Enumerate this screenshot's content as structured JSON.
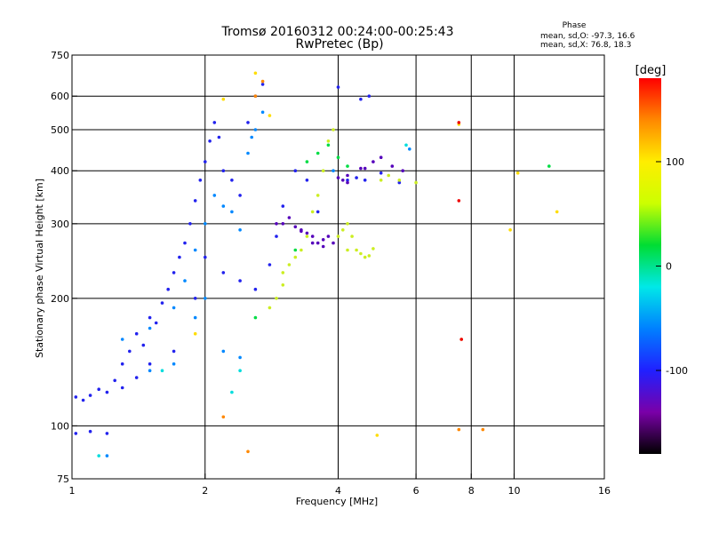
{
  "chart_data": {
    "type": "scatter",
    "title": "Tromsø 20160312 00:24:00-00:25:43",
    "subtitle": "RwPretec (Bp)",
    "xlabel": "Frequency [MHz]",
    "ylabel": "Stationary phase Virtual Height [km]",
    "xscale": "log2",
    "yscale": "log",
    "xlim": [
      1,
      16
    ],
    "ylim": [
      75,
      750
    ],
    "xticks": [
      1,
      2,
      4,
      6,
      8,
      10,
      16
    ],
    "yticks": [
      75,
      100,
      200,
      300,
      400,
      500,
      600,
      750
    ],
    "xgrid": [
      2,
      4,
      6,
      8,
      10
    ],
    "ygrid": [
      100,
      200,
      300,
      400,
      500,
      600
    ],
    "grid": true,
    "stats": {
      "title": "Phase",
      "line_o": "mean, sd,O: -97.3, 16.6",
      "line_x": "mean, sd,X:  76.8, 18.3"
    },
    "colorbar": {
      "label": "[deg]",
      "range": [
        -180,
        180
      ],
      "ticks": [
        100,
        0,
        -100
      ],
      "colormap": [
        "#000000",
        "#7a00a8",
        "#2020ff",
        "#0080ff",
        "#00e8e8",
        "#00dd33",
        "#ccff00",
        "#ffee00",
        "#ff8800",
        "#ff0000"
      ]
    },
    "series": [
      {
        "color": "#2222ee",
        "points": [
          [
            1.02,
            117
          ],
          [
            1.06,
            115
          ],
          [
            1.1,
            118
          ],
          [
            1.15,
            122
          ],
          [
            1.2,
            120
          ],
          [
            1.25,
            128
          ],
          [
            1.3,
            140
          ],
          [
            1.35,
            150
          ],
          [
            1.4,
            165
          ],
          [
            1.45,
            155
          ],
          [
            1.5,
            180
          ],
          [
            1.55,
            175
          ],
          [
            1.6,
            195
          ],
          [
            1.65,
            210
          ],
          [
            1.7,
            230
          ],
          [
            1.75,
            250
          ],
          [
            1.8,
            270
          ],
          [
            1.85,
            300
          ],
          [
            1.9,
            340
          ],
          [
            1.95,
            380
          ],
          [
            2.0,
            420
          ],
          [
            2.05,
            470
          ],
          [
            2.1,
            520
          ],
          [
            2.15,
            480
          ],
          [
            2.2,
            400
          ],
          [
            2.3,
            380
          ],
          [
            2.4,
            350
          ],
          [
            2.5,
            520
          ],
          [
            2.6,
            600
          ],
          [
            2.7,
            640
          ],
          [
            1.02,
            96
          ],
          [
            1.1,
            97
          ],
          [
            1.2,
            96
          ],
          [
            1.3,
            123
          ],
          [
            1.4,
            130
          ],
          [
            1.5,
            140
          ],
          [
            1.7,
            150
          ],
          [
            1.9,
            200
          ],
          [
            2.0,
            250
          ],
          [
            2.2,
            230
          ],
          [
            2.4,
            220
          ],
          [
            2.6,
            210
          ],
          [
            2.8,
            240
          ],
          [
            2.9,
            280
          ],
          [
            3.0,
            330
          ],
          [
            3.2,
            400
          ],
          [
            3.4,
            380
          ],
          [
            3.6,
            320
          ],
          [
            4.2,
            380
          ],
          [
            4.4,
            385
          ],
          [
            4.6,
            380
          ],
          [
            5.0,
            395
          ],
          [
            5.5,
            375
          ],
          [
            4.5,
            590
          ],
          [
            4.7,
            600
          ],
          [
            4.0,
            630
          ]
        ]
      },
      {
        "color": "#0088ff",
        "points": [
          [
            1.3,
            160
          ],
          [
            1.5,
            170
          ],
          [
            1.7,
            190
          ],
          [
            1.8,
            220
          ],
          [
            1.9,
            260
          ],
          [
            2.0,
            300
          ],
          [
            2.1,
            350
          ],
          [
            2.2,
            330
          ],
          [
            2.3,
            320
          ],
          [
            2.4,
            290
          ],
          [
            2.5,
            440
          ],
          [
            2.55,
            480
          ],
          [
            2.6,
            500
          ],
          [
            2.7,
            550
          ],
          [
            2.0,
            200
          ],
          [
            1.9,
            180
          ],
          [
            1.7,
            140
          ],
          [
            1.5,
            135
          ],
          [
            2.2,
            150
          ],
          [
            2.4,
            145
          ],
          [
            1.2,
            85
          ],
          [
            3.9,
            400
          ],
          [
            5.8,
            450
          ]
        ]
      },
      {
        "color": "#5500bb",
        "points": [
          [
            3.0,
            300
          ],
          [
            3.1,
            310
          ],
          [
            3.2,
            295
          ],
          [
            3.3,
            290
          ],
          [
            3.4,
            285
          ],
          [
            3.5,
            280
          ],
          [
            3.6,
            270
          ],
          [
            3.7,
            275
          ],
          [
            3.8,
            280
          ],
          [
            3.9,
            270
          ],
          [
            4.0,
            385
          ],
          [
            4.1,
            380
          ],
          [
            4.2,
            375
          ],
          [
            4.5,
            405
          ],
          [
            4.8,
            420
          ],
          [
            5.0,
            430
          ],
          [
            5.3,
            410
          ],
          [
            5.6,
            400
          ],
          [
            4.2,
            390
          ],
          [
            3.5,
            270
          ],
          [
            3.3,
            288
          ],
          [
            3.7,
            265
          ],
          [
            2.9,
            300
          ],
          [
            4.6,
            405
          ]
        ]
      },
      {
        "color": "#ccee22",
        "points": [
          [
            3.0,
            230
          ],
          [
            3.1,
            240
          ],
          [
            3.2,
            250
          ],
          [
            3.3,
            260
          ],
          [
            3.4,
            280
          ],
          [
            3.5,
            320
          ],
          [
            3.6,
            350
          ],
          [
            3.7,
            400
          ],
          [
            3.8,
            470
          ],
          [
            3.9,
            500
          ],
          [
            4.0,
            280
          ],
          [
            4.1,
            290
          ],
          [
            4.2,
            300
          ],
          [
            4.3,
            280
          ],
          [
            4.4,
            260
          ],
          [
            4.5,
            255
          ],
          [
            4.6,
            250
          ],
          [
            4.7,
            252
          ],
          [
            4.8,
            262
          ],
          [
            5.0,
            380
          ],
          [
            5.2,
            390
          ],
          [
            5.5,
            380
          ],
          [
            6.0,
            375
          ],
          [
            4.2,
            260
          ],
          [
            2.9,
            200
          ],
          [
            2.8,
            190
          ],
          [
            3.0,
            215
          ]
        ]
      },
      {
        "color": "#00dd44",
        "points": [
          [
            3.4,
            420
          ],
          [
            3.6,
            440
          ],
          [
            3.8,
            460
          ],
          [
            4.0,
            430
          ],
          [
            4.2,
            410
          ],
          [
            12.0,
            410
          ],
          [
            2.6,
            180
          ],
          [
            3.2,
            260
          ]
        ]
      },
      {
        "color": "#ffdd00",
        "points": [
          [
            2.6,
            680
          ],
          [
            7.5,
            515
          ],
          [
            10.2,
            395
          ],
          [
            12.5,
            320
          ],
          [
            9.8,
            290
          ],
          [
            2.2,
            590
          ],
          [
            1.9,
            165
          ],
          [
            2.8,
            540
          ],
          [
            4.9,
            95
          ]
        ]
      },
      {
        "color": "#ff8800",
        "points": [
          [
            2.7,
            650
          ],
          [
            2.2,
            105
          ],
          [
            2.5,
            87
          ],
          [
            7.5,
            98
          ],
          [
            8.5,
            98
          ],
          [
            7.6,
            160
          ],
          [
            2.6,
            600
          ]
        ]
      },
      {
        "color": "#ee0000",
        "points": [
          [
            7.6,
            160
          ],
          [
            7.5,
            340
          ],
          [
            7.5,
            520
          ]
        ]
      },
      {
        "color": "#00dddd",
        "points": [
          [
            1.15,
            85
          ],
          [
            5.7,
            460
          ],
          [
            2.4,
            135
          ],
          [
            2.3,
            120
          ],
          [
            1.6,
            135
          ]
        ]
      }
    ]
  }
}
